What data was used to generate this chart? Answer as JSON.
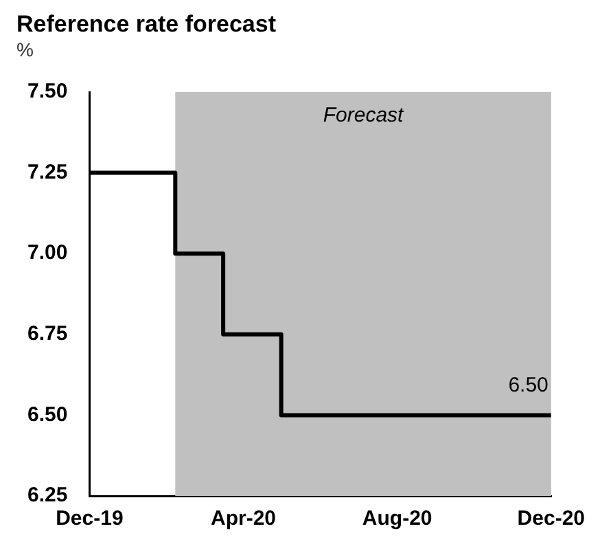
{
  "chart_data": {
    "type": "step",
    "title": "Reference rate forecast",
    "ylabel": "%",
    "x": [
      "2019-12-01",
      "2020-02-07",
      "2020-03-16",
      "2020-05-01",
      "2020-12-01"
    ],
    "series": [
      {
        "color": "#000000",
        "values": [
          7.25,
          7.0,
          6.75,
          6.5,
          6.5
        ]
      }
    ],
    "xlim": [
      "2019-12-01",
      "2020-12-01"
    ],
    "xticks": [
      {
        "value": "2019-12-01",
        "label": "Dec-19"
      },
      {
        "value": "2020-04-01",
        "label": "Apr-20"
      },
      {
        "value": "2020-08-01",
        "label": "Aug-20"
      },
      {
        "value": "2020-12-01",
        "label": "Dec-20"
      }
    ],
    "ylim": [
      6.25,
      7.5
    ],
    "yticks": [
      {
        "value": 6.25,
        "label": "6.25"
      },
      {
        "value": 6.5,
        "label": "6.50"
      },
      {
        "value": 6.75,
        "label": "6.75"
      },
      {
        "value": 7.0,
        "label": "7.00"
      },
      {
        "value": 7.25,
        "label": "7.25"
      },
      {
        "value": 7.5,
        "label": "7.50"
      }
    ],
    "bands": [
      {
        "axis": "x",
        "from": "2020-02-07",
        "to": "2020-12-01",
        "label": "Forecast",
        "color": "#c0c0c0"
      }
    ],
    "annotations": [
      {
        "text": "6.50",
        "x": "2020-12-01",
        "y": 6.5
      }
    ],
    "grid": false,
    "legend": false,
    "marker": "none",
    "line_style": "solid"
  }
}
